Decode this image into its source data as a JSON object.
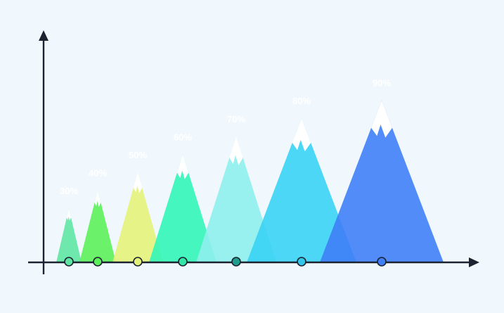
{
  "chart_data": {
    "type": "area",
    "title": "",
    "xlabel": "",
    "ylabel": "",
    "ylim": [
      0,
      100
    ],
    "grid": false,
    "legend": "none",
    "series": [
      {
        "value": 30,
        "label": "30%",
        "color": "#5fe6a3",
        "marker_color": "#5fe6a3"
      },
      {
        "value": 40,
        "label": "40%",
        "color": "#5cf05a",
        "marker_color": "#5cf05a"
      },
      {
        "value": 50,
        "label": "50%",
        "color": "#e4f27a",
        "marker_color": "#e4f27a"
      },
      {
        "value": 60,
        "label": "60%",
        "color": "#33f5b8",
        "marker_color": "#33e6a8"
      },
      {
        "value": 70,
        "label": "70%",
        "color": "#8ef0ec",
        "marker_color": "#1e9c8c"
      },
      {
        "value": 80,
        "label": "80%",
        "color": "#38d3f4",
        "marker_color": "#34c6e8"
      },
      {
        "value": 90,
        "label": "90%",
        "color": "#3f7ff7",
        "marker_color": "#3f7ff7"
      }
    ]
  }
}
